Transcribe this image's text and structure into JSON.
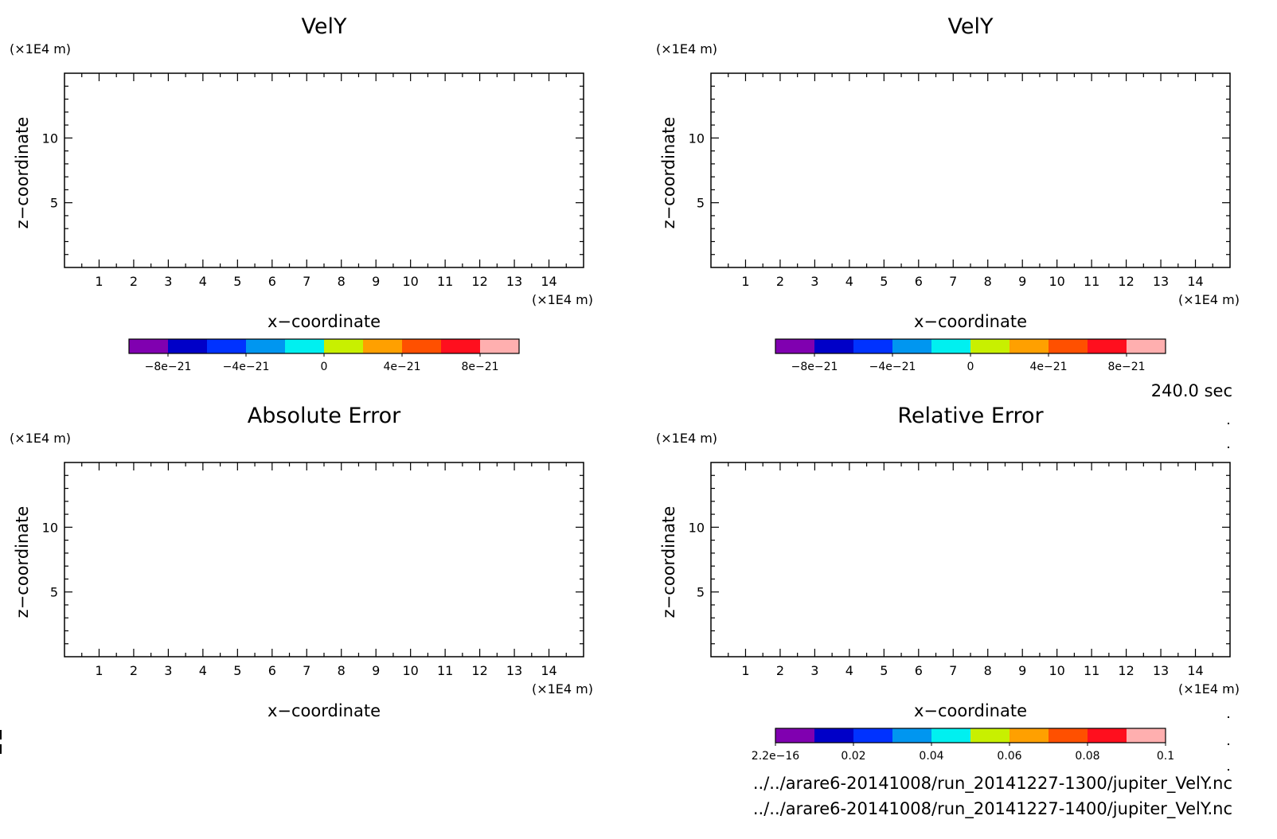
{
  "time_label": "240.0 sec",
  "files": [
    "../../arare6-20141008/run_20141227-1300/jupiter_VelY.nc",
    "../../arare6-20141008/run_20141227-1400/jupiter_VelY.nc"
  ],
  "colorbar_colors": [
    "#8000b0",
    "#0000c8",
    "#0032ff",
    "#0096f0",
    "#00f0f0",
    "#c8f000",
    "#ffa000",
    "#ff5000",
    "#ff0f1e",
    "#ffafaf"
  ],
  "chart_data": [
    {
      "type": "heatmap",
      "title": "VelY",
      "xlabel": "x−coordinate",
      "ylabel": "z−coordinate",
      "x_unit": "(×1E4 m)",
      "y_unit": "(×1E4 m)",
      "xlim": [
        0,
        15
      ],
      "ylim": [
        0,
        15
      ],
      "xticks": [
        "1",
        "2",
        "3",
        "4",
        "5",
        "6",
        "7",
        "8",
        "9",
        "10",
        "11",
        "12",
        "13",
        "14"
      ],
      "yticks": [
        "5",
        "10"
      ],
      "ytick_values": [
        5,
        10
      ],
      "values": [],
      "colorbar": {
        "range": [
          -1e-20,
          1e-20
        ],
        "ticks": [
          "−8e−21",
          "−4e−21",
          "0",
          "4e−21",
          "8e−21"
        ]
      }
    },
    {
      "type": "heatmap",
      "title": "VelY",
      "xlabel": "x−coordinate",
      "ylabel": "z−coordinate",
      "x_unit": "(×1E4 m)",
      "y_unit": "(×1E4 m)",
      "xlim": [
        0,
        15
      ],
      "ylim": [
        0,
        15
      ],
      "xticks": [
        "1",
        "2",
        "3",
        "4",
        "5",
        "6",
        "7",
        "8",
        "9",
        "10",
        "11",
        "12",
        "13",
        "14"
      ],
      "yticks": [
        "5",
        "10"
      ],
      "ytick_values": [
        5,
        10
      ],
      "values": [],
      "colorbar": {
        "range": [
          -1e-20,
          1e-20
        ],
        "ticks": [
          "−8e−21",
          "−4e−21",
          "0",
          "4e−21",
          "8e−21"
        ]
      }
    },
    {
      "type": "heatmap",
      "title": "Absolute Error",
      "xlabel": "x−coordinate",
      "ylabel": "z−coordinate",
      "x_unit": "(×1E4 m)",
      "y_unit": "(×1E4 m)",
      "xlim": [
        0,
        15
      ],
      "ylim": [
        0,
        15
      ],
      "xticks": [
        "1",
        "2",
        "3",
        "4",
        "5",
        "6",
        "7",
        "8",
        "9",
        "10",
        "11",
        "12",
        "13",
        "14"
      ],
      "yticks": [
        "5",
        "10"
      ],
      "ytick_values": [
        5,
        10
      ],
      "values": []
    },
    {
      "type": "heatmap",
      "title": "Relative Error",
      "xlabel": "x−coordinate",
      "ylabel": "z−coordinate",
      "x_unit": "(×1E4 m)",
      "y_unit": "(×1E4 m)",
      "xlim": [
        0,
        15
      ],
      "ylim": [
        0,
        15
      ],
      "xticks": [
        "1",
        "2",
        "3",
        "4",
        "5",
        "6",
        "7",
        "8",
        "9",
        "10",
        "11",
        "12",
        "13",
        "14"
      ],
      "yticks": [
        "5",
        "10"
      ],
      "ytick_values": [
        5,
        10
      ],
      "values": [],
      "colorbar": {
        "range": [
          0,
          0.1
        ],
        "ticks": [
          "2.2e−16",
          "0.02",
          "0.04",
          "0.06",
          "0.08",
          "0.1"
        ]
      }
    }
  ]
}
